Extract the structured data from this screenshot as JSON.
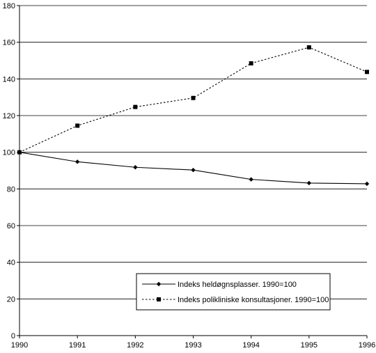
{
  "chart_data": {
    "type": "line",
    "title": "",
    "xlabel": "",
    "ylabel": "",
    "x": [
      "1990",
      "1991",
      "1992",
      "1993",
      "1994",
      "1995",
      "1996"
    ],
    "ylim": [
      0,
      180
    ],
    "yticks": [
      0,
      20,
      40,
      60,
      80,
      100,
      120,
      140,
      160,
      180
    ],
    "grid": "horizontal",
    "legend_position": "bottom-right",
    "series": [
      {
        "name": "Indeks heldøgnsplasser. 1990=100",
        "values": [
          100,
          94.8,
          91.8,
          90.3,
          85.2,
          83.2,
          82.8
        ],
        "line_style": "solid",
        "marker": "diamond",
        "color": "#000000"
      },
      {
        "name": "Indeks polikliniske konsultasjoner. 1990=100",
        "values": [
          100,
          114.5,
          124.7,
          129.6,
          148.5,
          157.2,
          143.8
        ],
        "line_style": "dotted",
        "marker": "square",
        "color": "#000000"
      }
    ]
  }
}
